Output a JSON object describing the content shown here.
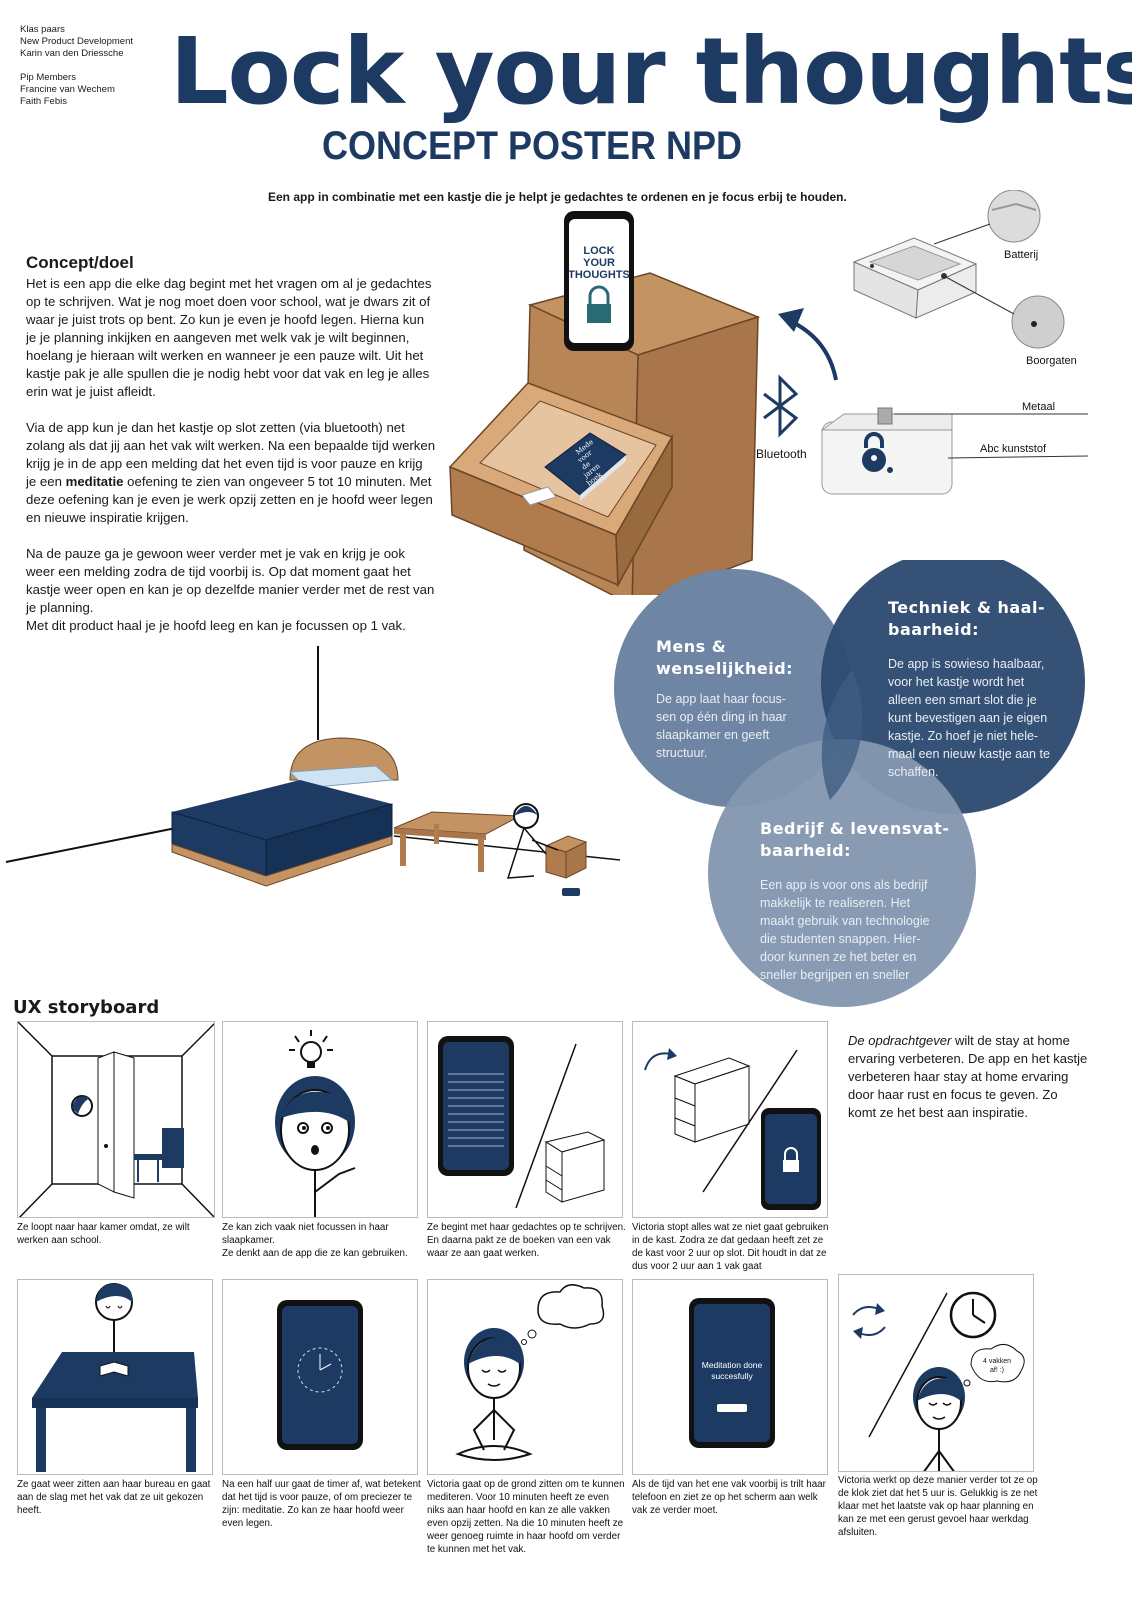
{
  "credits": {
    "lines1": [
      "Klas paars",
      "New Product Development",
      "Karin van den Driessche"
    ],
    "lines2": [
      "Pip Members",
      "Francine van Wechem",
      "Faith Febis"
    ]
  },
  "header": {
    "title": "Lock your thoughts",
    "subtitle": "CONCEPT POSTER NPD",
    "tagline": "Een app in combinatie met een kastje die je helpt je gedachtes te ordenen en je focus erbij te houden."
  },
  "concept": {
    "heading": "Concept/doel",
    "p1": "Het is een app die elke dag begint met het vragen om al je gedachtes op te schrijven. Wat je nog moet doen voor school, wat je dwars zit of waar je juist trots op bent. Zo kun je even je hoofd legen. Hierna kun je je planning inkijken en aangeven met welk vak je wilt beginnen, hoelang je hieraan wilt werken en wanneer je een pauze wilt. Uit het kastje pak je alle spullen die je nodig hebt voor dat vak en leg je alles erin wat je juist afleidt.",
    "p2_before": "Via de app kun je dan het kastje op slot zetten (via bluetooth) net zolang als dat jij aan het vak wilt werken. Na een bepaalde tijd werken krijg je in de app een melding dat het even tijd is voor pauze en krijg je een ",
    "p2_bold": "meditatie",
    "p2_after": " oefening te zien van ongeveer 5 tot 10 minuten. Met deze oefening kan je even je werk opzij zetten en je hoofd weer legen en nieuwe inspiratie krijgen.",
    "p3": "Na de pauze ga je gewoon weer verder met je vak en krijg je ook weer een melding zodra de tijd voorbij is. Op dat moment gaat het kastje weer open en kan je op dezelfde manier verder met de rest van je planning.",
    "p4": "Met dit product haal je je hoofd leeg en kan je focussen op 1 vak."
  },
  "product": {
    "phone_text": [
      "LOCK",
      "YOUR",
      "THOUGHTS"
    ],
    "book_text": [
      "Mede",
      "voor",
      "de",
      "jaren",
      "boek"
    ],
    "bluetooth": "Bluetooth",
    "batterij": "Batterij",
    "boorgaten": "Boorgaten",
    "metaal": "Metaal",
    "kunststof": "Abc kunststof"
  },
  "venn": {
    "mens_title": [
      "Mens &",
      "wenselijkheid:"
    ],
    "mens_body": [
      "De app laat haar focus-",
      "sen op één ding in haar",
      "slaapkamer en geeft",
      "structuur."
    ],
    "tech_title": [
      "Techniek & haal-",
      "baarheid:"
    ],
    "tech_body": [
      "De app is sowieso haalbaar,",
      "voor het kastje wordt het",
      "alleen een smart slot die je",
      "kunt bevestigen aan je eigen",
      "kastje. Zo hoef je niet hele-",
      "maal een nieuw kastje aan te",
      "schaffen."
    ],
    "bedrijf_title": [
      "Bedrijf & levensvat-",
      "baarheid:"
    ],
    "bedrijf_body": [
      "Een app is voor ons als bedrijf",
      "makkelijk te realiseren. Het",
      "maakt gebruik van technologie",
      "die studenten snappen. Hier-",
      "door kunnen ze het beter en",
      "sneller begrijpen en sneller"
    ]
  },
  "storyboard": {
    "heading": "UX storyboard",
    "client_italic": "De opdrachtgever",
    "client_rest": " wilt de stay at home ervaring verbeteren. De app en het kastje verbeteren haar stay at home ervaring door haar rust en focus te geven. Zo komt ze het best aan inspiratie.",
    "captions": [
      "Ze loopt naar haar kamer omdat, ze wilt werken aan school.",
      "Ze kan zich vaak niet focussen in haar slaapkamer.\nZe denkt aan de app die ze kan gebruiken.",
      "Ze begint met haar gedachtes op te schrijven. En daarna pakt ze de boeken van een vak waar ze aan gaat werken.",
      "Victoria stopt alles wat ze niet gaat gebruiken in de kast. Zodra ze dat gedaan heeft zet ze de kast voor 2 uur op slot. Dit houdt in dat ze dus voor 2 uur aan 1 vak gaat",
      "Ze gaat weer zitten aan haar bureau en gaat aan de slag met het vak dat ze uit gekozen heeft.",
      "Na een half uur gaat de timer af, wat betekent dat het tijd is voor pauze, of om preciezer te zijn: meditatie. Zo kan ze haar hoofd weer even legen.",
      "Victoria gaat op de grond zitten om te kunnen mediteren. Voor 10 minuten heeft ze even niks aan haar hoofd en kan ze alle vakken even opzij zetten. Na die 10 minuten heeft ze weer genoeg ruimte in haar hoofd om verder te kunnen met het vak.",
      "Als de tijd van het ene vak voorbij is trilt haar telefoon en ziet ze op het scherm aan welk vak ze verder moet.",
      "Victoria werkt op deze manier verder tot ze op de klok ziet dat het 5 uur is. Gelukkig is ze net klaar met het laatste vak op haar planning en kan ze met een gerust gevoel haar werkdag afsluiten."
    ],
    "meditation_screen": [
      "Meditation done",
      "succesfully"
    ],
    "bubble_text": [
      "4 vakken",
      "af! :)"
    ]
  },
  "colors": {
    "navy": "#1d3a63",
    "circle_a": "#6e86a3",
    "circle_b": "#2e4b72",
    "circle_c": "#8497b0"
  }
}
